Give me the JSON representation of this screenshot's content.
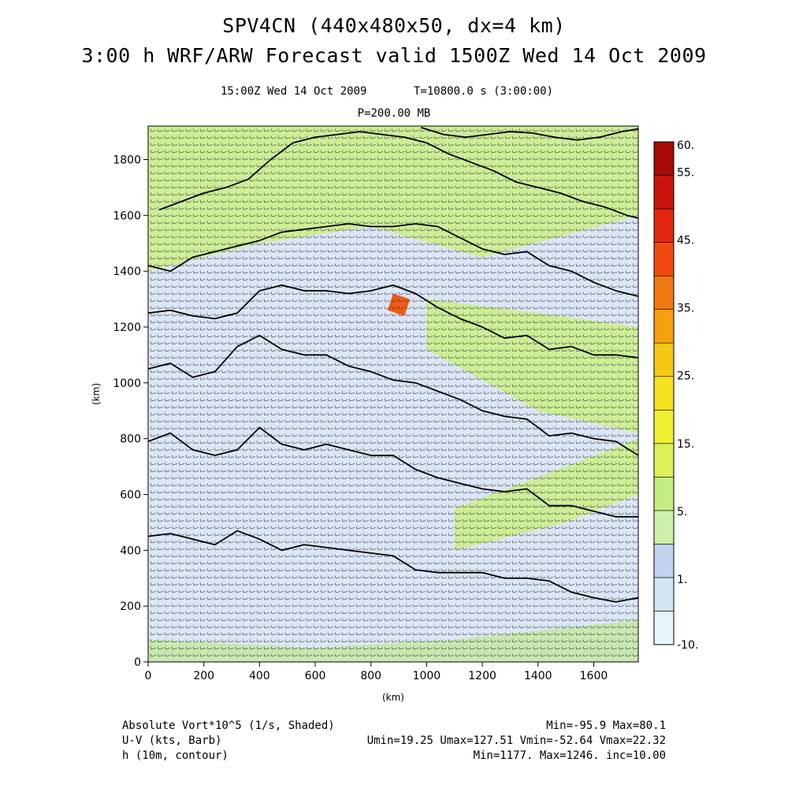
{
  "header": {
    "title_line1": "SPV4CN (440x480x50, dx=4 km)",
    "title_line2": "3:00 h WRF/ARW Forecast valid 1500Z Wed 14 Oct 2009",
    "valid_time": "15:00Z Wed 14 Oct 2009",
    "time_info": "T=10800.0 s (3:00:00)",
    "level": "P=200.00 MB"
  },
  "footer": {
    "line1_left": "Absolute Vort*10^5 (1/s, Shaded)",
    "line1_right": "Min=-95.9 Max=80.1",
    "line2_left": "U-V (kts, Barb)",
    "line2_right": "Umin=19.25 Umax=127.51 Vmin=-52.64 Vmax=22.32",
    "line3_left": "h (10m, contour)",
    "line3_right": "Min=1177. Max=1246. inc=10.00"
  },
  "chart_data": {
    "type": "heatmap",
    "title": "SPV4CN (440x480x50, dx=4 km) 3:00 h WRF/ARW Forecast valid 1500Z Wed 14 Oct 2009",
    "xlabel": "(km)",
    "ylabel": "(km)",
    "xlim": [
      0,
      1760
    ],
    "ylim": [
      0,
      1920
    ],
    "x_ticks": [
      0,
      200,
      400,
      600,
      800,
      1000,
      1200,
      1400,
      1600
    ],
    "y_ticks": [
      0,
      200,
      400,
      600,
      800,
      1000,
      1200,
      1400,
      1600,
      1800
    ],
    "fields": {
      "shaded": "Absolute Vort*10^5 (1/s, Shaded)",
      "barbs": "U-V (kts, Barb)",
      "contour": "h (10m, contour)"
    },
    "colorbar": {
      "levels": [
        -10,
        1,
        5,
        15,
        25,
        35,
        45,
        55,
        60
      ],
      "labels": [
        "60.",
        "55.",
        "45.",
        "35.",
        "25.",
        "15.",
        "5.",
        "1.",
        "-10."
      ],
      "colors": [
        "#e6f5fb",
        "#d2e6f5",
        "#c4d2f0",
        "#cdf0aa",
        "#c4ee82",
        "#dcf05a",
        "#f0f032",
        "#f5e11e",
        "#f5c814",
        "#f5a00f",
        "#f07814",
        "#f04b0f",
        "#e1280f",
        "#c8140a",
        "#a50a05"
      ]
    },
    "contours": [
      {
        "x": [
          0,
          80,
          160,
          240,
          320,
          400,
          480,
          560,
          640,
          720,
          800,
          880,
          960,
          1040,
          1120,
          1200,
          1280,
          1360,
          1440,
          1520,
          1600,
          1680,
          1760
        ],
        "y": [
          450,
          460,
          440,
          420,
          470,
          440,
          400,
          420,
          410,
          400,
          390,
          380,
          330,
          320,
          320,
          320,
          300,
          300,
          290,
          250,
          230,
          215,
          230
        ]
      },
      {
        "x": [
          0,
          80,
          160,
          240,
          320,
          400,
          480,
          560,
          640,
          720,
          800,
          880,
          960,
          1040,
          1120,
          1200,
          1280,
          1360,
          1440,
          1520,
          1600,
          1680,
          1760
        ],
        "y": [
          790,
          820,
          760,
          740,
          760,
          840,
          780,
          760,
          780,
          760,
          740,
          740,
          690,
          660,
          640,
          620,
          610,
          620,
          560,
          560,
          540,
          520,
          520
        ]
      },
      {
        "x": [
          0,
          80,
          160,
          240,
          320,
          400,
          480,
          560,
          640,
          720,
          800,
          880,
          960,
          1040,
          1120,
          1200,
          1280,
          1360,
          1440,
          1520,
          1600,
          1680,
          1760
        ],
        "y": [
          1050,
          1070,
          1020,
          1040,
          1130,
          1170,
          1120,
          1100,
          1100,
          1060,
          1040,
          1010,
          1000,
          970,
          940,
          900,
          880,
          870,
          810,
          820,
          800,
          790,
          740
        ]
      },
      {
        "x": [
          0,
          80,
          160,
          240,
          320,
          400,
          480,
          560,
          640,
          720,
          800,
          880,
          960,
          1040,
          1120,
          1200,
          1280,
          1360,
          1440,
          1520,
          1600,
          1680,
          1760
        ],
        "y": [
          1250,
          1260,
          1240,
          1230,
          1250,
          1330,
          1350,
          1330,
          1330,
          1320,
          1330,
          1350,
          1320,
          1270,
          1230,
          1200,
          1160,
          1170,
          1120,
          1130,
          1100,
          1100,
          1090
        ]
      },
      {
        "x": [
          0,
          80,
          160,
          240,
          320,
          400,
          480,
          560,
          640,
          720,
          800,
          880,
          960,
          1040,
          1120,
          1200,
          1280,
          1360,
          1440,
          1520,
          1600,
          1680,
          1760
        ],
        "y": [
          1420,
          1400,
          1450,
          1470,
          1490,
          1510,
          1540,
          1550,
          1560,
          1570,
          1560,
          1560,
          1570,
          1560,
          1520,
          1480,
          1460,
          1470,
          1420,
          1400,
          1360,
          1330,
          1310
        ]
      },
      {
        "x": [
          40,
          120,
          200,
          280,
          360,
          440,
          520,
          600,
          680,
          760,
          840,
          920,
          1000,
          1080,
          1160,
          1240,
          1320,
          1400,
          1480,
          1560,
          1640,
          1720,
          1760
        ],
        "y": [
          1620,
          1650,
          1680,
          1700,
          1730,
          1800,
          1860,
          1880,
          1890,
          1900,
          1890,
          1880,
          1860,
          1820,
          1790,
          1760,
          1720,
          1700,
          1680,
          1650,
          1630,
          1600,
          1590
        ]
      },
      {
        "x": [
          980,
          1060,
          1140,
          1220,
          1300,
          1380,
          1460,
          1540,
          1620,
          1700,
          1760
        ],
        "y": [
          1915,
          1890,
          1880,
          1890,
          1900,
          1895,
          1880,
          1870,
          1880,
          1900,
          1910
        ]
      }
    ],
    "shading_regions": [
      {
        "level": "5 to 15",
        "x": [
          0,
          400,
          800,
          1200,
          1760,
          1760,
          1200,
          800,
          400,
          0
        ],
        "y": [
          1920,
          1920,
          1920,
          1920,
          1920,
          1600,
          1450,
          1560,
          1500,
          1400
        ]
      },
      {
        "level": "5 to 15",
        "x": [
          1000,
          1400,
          1760,
          1760,
          1400,
          1000
        ],
        "y": [
          1120,
          900,
          820,
          1200,
          1250,
          1300
        ]
      },
      {
        "level": "5 to 15",
        "x": [
          1100,
          1500,
          1760,
          1760,
          1500,
          1100
        ],
        "y": [
          400,
          500,
          600,
          800,
          700,
          550
        ]
      },
      {
        "level": "1 to 5",
        "x": [
          0,
          600,
          1100,
          1760,
          1760,
          1000,
          500,
          0
        ],
        "y": [
          80,
          50,
          80,
          150,
          0,
          0,
          0,
          0
        ]
      },
      {
        "level": "25 to 45",
        "x": [
          860,
          920,
          940,
          880
        ],
        "y": [
          1260,
          1240,
          1300,
          1320
        ]
      }
    ],
    "grid": false
  }
}
